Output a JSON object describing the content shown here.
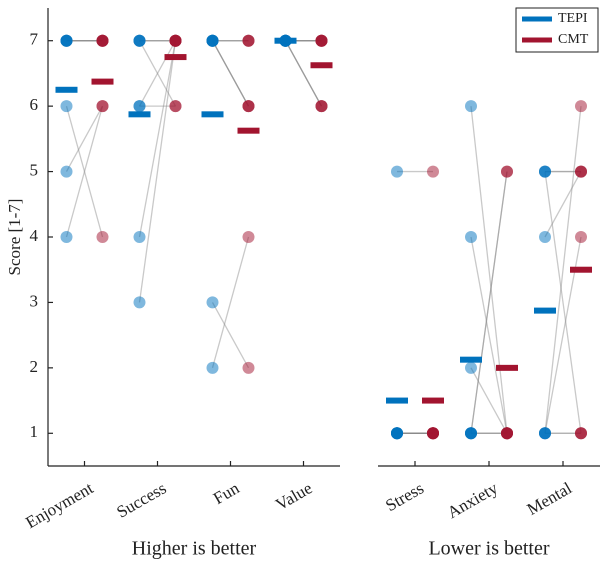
{
  "chart_data": [
    {
      "type": "paired_dot",
      "ylabel": "Score [1-7]",
      "xlabel": "Higher is better",
      "categories": [
        "Enjoyment",
        "Success",
        "Fun",
        "Value"
      ],
      "ylim": [
        0.5,
        7.5
      ],
      "yticks": [
        1,
        2,
        3,
        4,
        5,
        6,
        7
      ],
      "series": [
        {
          "name": "TEPI",
          "color": "#0072bd",
          "values": [
            [
              7,
              7,
              7,
              7,
              7,
              6,
              5,
              4
            ],
            [
              7,
              7,
              7,
              7,
              6,
              6,
              4,
              3
            ],
            [
              7,
              7,
              7,
              7,
              7,
              7,
              3,
              2
            ],
            [
              7,
              7,
              7,
              7,
              7,
              7,
              7,
              7
            ]
          ],
          "means": [
            6.25,
            5.875,
            5.875,
            7
          ]
        },
        {
          "name": "CMT",
          "color": "#a2142f",
          "values": [
            [
              7,
              7,
              7,
              7,
              7,
              4,
              6,
              6
            ],
            [
              7,
              7,
              7,
              6,
              7,
              6,
              7,
              7
            ],
            [
              7,
              7,
              7,
              6,
              6,
              6,
              2,
              4
            ],
            [
              7,
              7,
              7,
              7,
              7,
              6,
              6,
              6
            ]
          ],
          "means": [
            6.375,
            6.75,
            5.625,
            6.625
          ]
        }
      ]
    },
    {
      "type": "paired_dot",
      "xlabel": "Lower is better",
      "categories": [
        "Stress",
        "Anxiety",
        "Mental"
      ],
      "ylim": [
        0.5,
        7.5
      ],
      "legend": "top right",
      "series": [
        {
          "name": "TEPI",
          "color": "#0072bd",
          "values": [
            [
              5,
              1,
              1,
              1,
              1,
              1,
              1,
              1
            ],
            [
              6,
              4,
              2,
              1,
              1,
              1,
              1,
              1
            ],
            [
              5,
              5,
              5,
              4,
              1,
              1,
              1,
              1
            ]
          ],
          "means": [
            1.5,
            2.125,
            2.875
          ]
        },
        {
          "name": "CMT",
          "color": "#a2142f",
          "values": [
            [
              5,
              1,
              1,
              1,
              1,
              1,
              1,
              1
            ],
            [
              1,
              1,
              1,
              5,
              5,
              1,
              1,
              1
            ],
            [
              1,
              5,
              5,
              5,
              6,
              4,
              1,
              1
            ]
          ],
          "means": [
            1.5,
            2,
            3.5
          ]
        }
      ]
    }
  ]
}
